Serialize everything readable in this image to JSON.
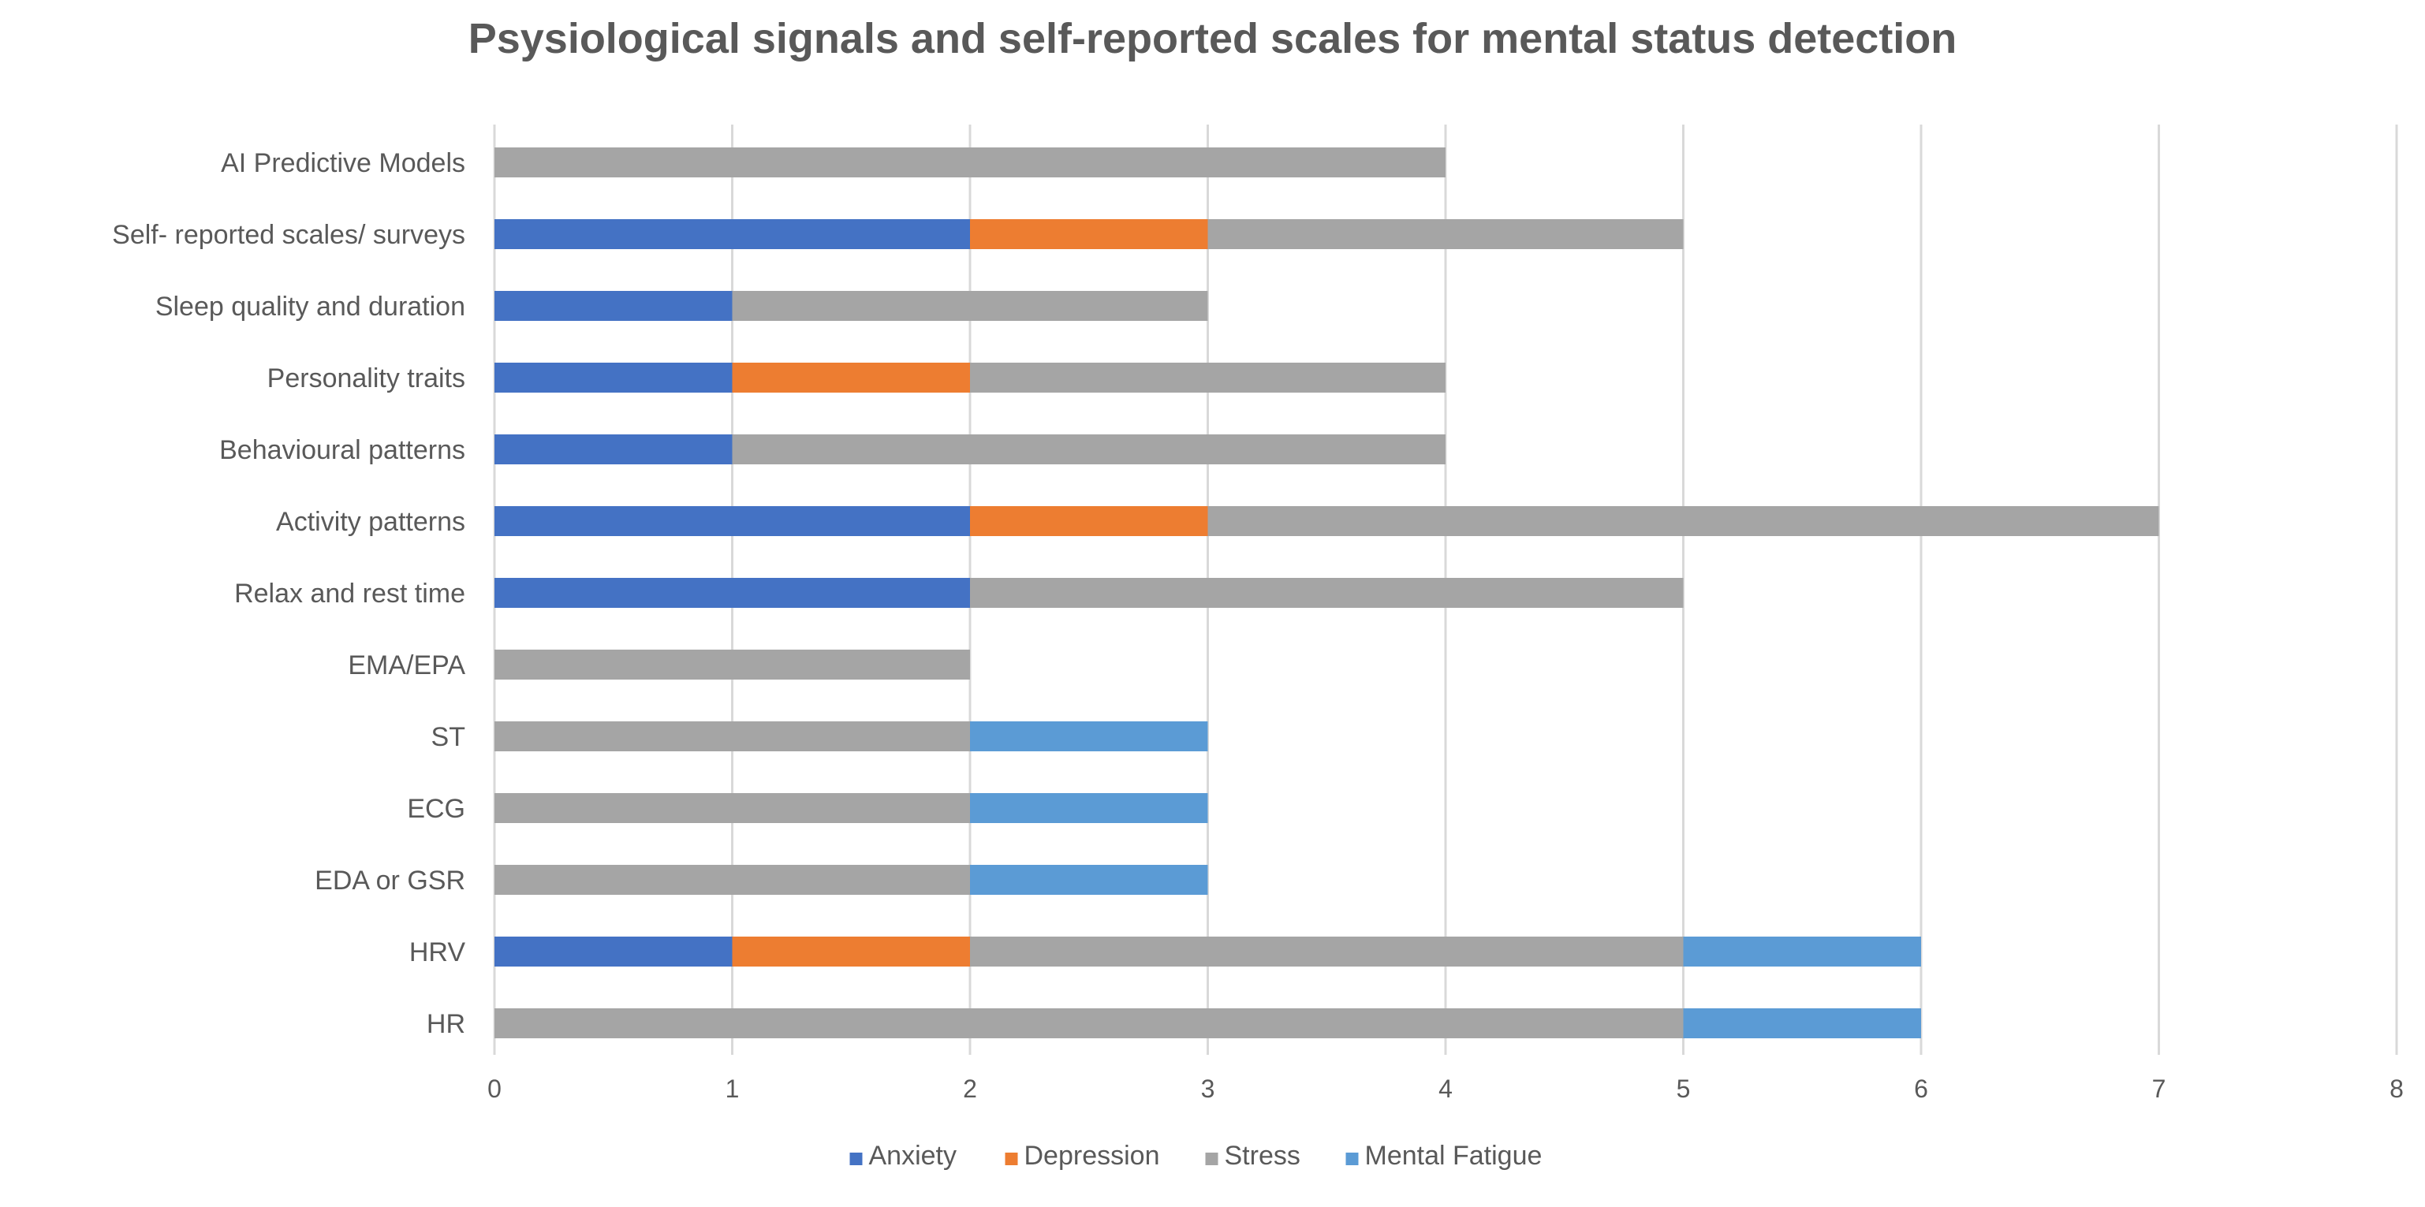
{
  "chart_data": {
    "type": "bar",
    "orientation": "horizontal",
    "stacked": true,
    "title": "Psysiological signals and self-reported scales for mental status detection",
    "xlabel": "",
    "ylabel": "",
    "xlim": [
      0,
      8
    ],
    "xticks": [
      "0",
      "1",
      "2",
      "3",
      "4",
      "5",
      "6",
      "7",
      "8"
    ],
    "grid": true,
    "legend_position": "bottom",
    "categories": [
      "AI Predictive Models",
      "Self- reported scales/ surveys",
      "Sleep quality and duration",
      "Personality traits",
      "Behavioural patterns",
      "Activity patterns",
      "Relax and rest time",
      "EMA/EPA",
      "ST",
      "ECG",
      "EDA or  GSR",
      "HRV",
      "HR"
    ],
    "series": [
      {
        "name": "Anxiety",
        "color": "#4472c4",
        "values": [
          0,
          2,
          1,
          1,
          1,
          2,
          2,
          0,
          0,
          0,
          0,
          1,
          0
        ]
      },
      {
        "name": "Depression",
        "color": "#ed7d31",
        "values": [
          0,
          1,
          0,
          1,
          0,
          1,
          0,
          0,
          0,
          0,
          0,
          1,
          0
        ]
      },
      {
        "name": "Stress",
        "color": "#a5a5a5",
        "values": [
          4,
          2,
          2,
          2,
          3,
          4,
          3,
          2,
          2,
          2,
          2,
          3,
          5
        ]
      },
      {
        "name": "Mental Fatigue",
        "color": "#5b9bd5",
        "values": [
          0,
          0,
          0,
          0,
          0,
          0,
          0,
          0,
          1,
          1,
          1,
          1,
          1
        ]
      }
    ]
  }
}
